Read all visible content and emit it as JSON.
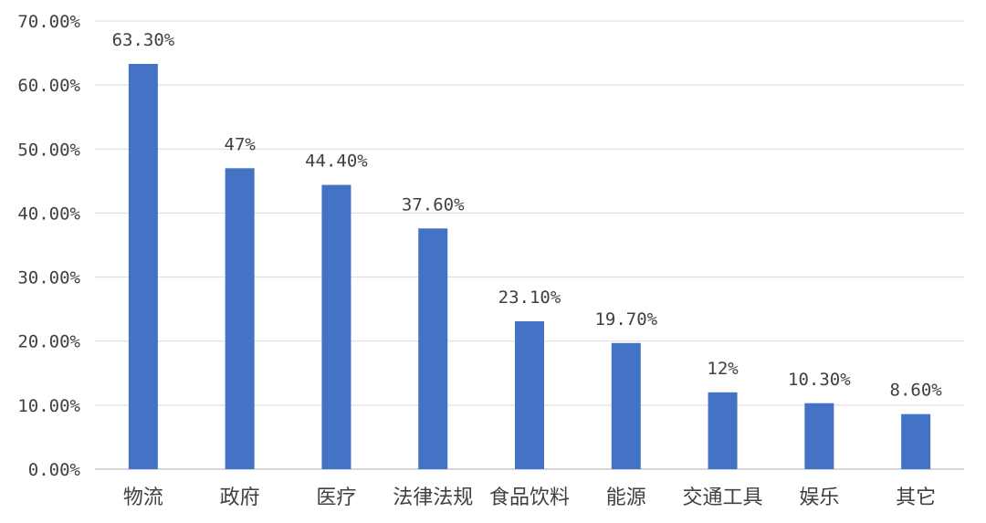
{
  "chart_data": {
    "type": "bar",
    "title": "",
    "xlabel": "",
    "ylabel": "",
    "categories": [
      "物流",
      "政府",
      "医疗",
      "法律法规",
      "食品饮料",
      "能源",
      "交通工具",
      "娱乐",
      "其它"
    ],
    "values": [
      63.3,
      47,
      44.4,
      37.6,
      23.1,
      19.7,
      12,
      10.3,
      8.6
    ],
    "data_labels": [
      "63.30%",
      "47%",
      "44.40%",
      "37.60%",
      "23.10%",
      "19.70%",
      "12%",
      "10.30%",
      "8.60%"
    ],
    "ylim": [
      0,
      70
    ],
    "yticks": [
      0,
      10,
      20,
      30,
      40,
      50,
      60,
      70
    ],
    "ytick_labels": [
      "0.00%",
      "10.00%",
      "20.00%",
      "30.00%",
      "40.00%",
      "50.00%",
      "60.00%",
      "70.00%"
    ],
    "grid": true,
    "legend": "none",
    "bar_color": "#4472C4"
  }
}
